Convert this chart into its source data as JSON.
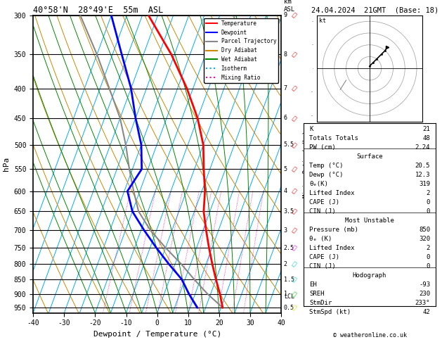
{
  "title_left": "40°58'N  28°49'E  55m  ASL",
  "title_right": "24.04.2024  21GMT  (Base: 18)",
  "xlabel": "Dewpoint / Temperature (°C)",
  "ylabel_left": "hPa",
  "temp_color": "#ff0000",
  "dewp_color": "#0000ff",
  "parcel_color": "#888888",
  "dry_adiabat_color": "#cc8800",
  "wet_adiabat_color": "#008800",
  "isotherm_color": "#00aaff",
  "mixing_ratio_color": "#ff00aa",
  "legend_items": [
    "Temperature",
    "Dewpoint",
    "Parcel Trajectory",
    "Dry Adiabat",
    "Wet Adiabat",
    "Isotherm",
    "Mixing Ratio"
  ],
  "legend_colors": [
    "#ff0000",
    "#0000ff",
    "#888888",
    "#cc8800",
    "#008800",
    "#00aaff",
    "#ff00aa"
  ],
  "legend_styles": [
    "-",
    "-",
    "-",
    "-",
    "-",
    ":",
    ":"
  ],
  "stats_K": "21",
  "stats_TT": "48",
  "stats_PW": "2.24",
  "stats_surf_temp": "20.5",
  "stats_surf_dewp": "12.3",
  "stats_surf_theta": "319",
  "stats_surf_li": "2",
  "stats_surf_cape": "0",
  "stats_surf_cin": "0",
  "stats_mu_press": "850",
  "stats_mu_theta": "320",
  "stats_mu_li": "2",
  "stats_mu_cape": "0",
  "stats_mu_cin": "0",
  "stats_eh": "-93",
  "stats_sreh": "230",
  "stats_stmdir": "233°",
  "stats_stmspd": "42",
  "copyright": "© weatheronline.co.uk",
  "temp_pressure": [
    950,
    900,
    850,
    800,
    750,
    700,
    650,
    600,
    550,
    500,
    450,
    400,
    350,
    300
  ],
  "temp_vals": [
    20.5,
    18,
    15,
    12,
    9,
    6,
    3,
    1,
    -2,
    -5,
    -10,
    -17,
    -26,
    -38
  ],
  "dewp_pressure": [
    950,
    900,
    850,
    800,
    750,
    700,
    650,
    600,
    550,
    500,
    450,
    400,
    350,
    300
  ],
  "dewp_vals": [
    12.3,
    8,
    4,
    -2,
    -8,
    -14,
    -20,
    -24,
    -22,
    -25,
    -30,
    -35,
    -42,
    -50
  ],
  "parcel_pressure": [
    950,
    900,
    850,
    800,
    750,
    700,
    650,
    600,
    550,
    500,
    450,
    400,
    350,
    300
  ],
  "parcel_vals": [
    20.5,
    14,
    8,
    2,
    -5,
    -12,
    -18,
    -22,
    -26,
    -30,
    -35,
    -42,
    -50,
    -60
  ],
  "pressure_lines": [
    300,
    350,
    400,
    450,
    500,
    550,
    600,
    650,
    700,
    750,
    800,
    850,
    900,
    950
  ],
  "mixing_ratio_values": [
    1,
    2,
    3,
    4,
    6,
    8,
    10,
    15,
    20,
    25
  ],
  "lcl_pressure": 910,
  "km_pressures": [
    300,
    350,
    400,
    450,
    500,
    550,
    600,
    650,
    700,
    750,
    800,
    850,
    900,
    950
  ],
  "km_values": [
    9,
    8,
    7,
    6,
    5.5,
    5,
    4,
    3.5,
    3,
    2.5,
    2,
    1.5,
    1,
    0.5
  ],
  "hodo_u": [
    0,
    3,
    6,
    10,
    13,
    15
  ],
  "hodo_v": [
    2,
    5,
    8,
    12,
    15,
    18
  ],
  "hodo_u_low": [
    -20,
    -25
  ],
  "hodo_v_low": [
    -10,
    -18
  ],
  "wind_pressures": [
    950,
    900,
    850,
    800,
    750,
    700,
    650,
    600,
    550,
    500,
    450,
    400,
    350,
    300
  ],
  "wind_colors": [
    "#dddd00",
    "#00cc00",
    "#00cccc",
    "#00cccc",
    "#ff00ff",
    "#ff0000",
    "#ff0000",
    "#ff0000",
    "#ff0000",
    "#ff0000",
    "#ff0000",
    "#ff0000",
    "#ff0000",
    "#ff0000"
  ],
  "wind_u": [
    -3,
    -5,
    -8,
    -10,
    -12,
    -15,
    -12,
    -10,
    -12,
    -15,
    -18,
    -20,
    -22,
    -25
  ],
  "wind_v": [
    5,
    8,
    12,
    15,
    18,
    20,
    15,
    12,
    15,
    18,
    20,
    22,
    25,
    28
  ]
}
